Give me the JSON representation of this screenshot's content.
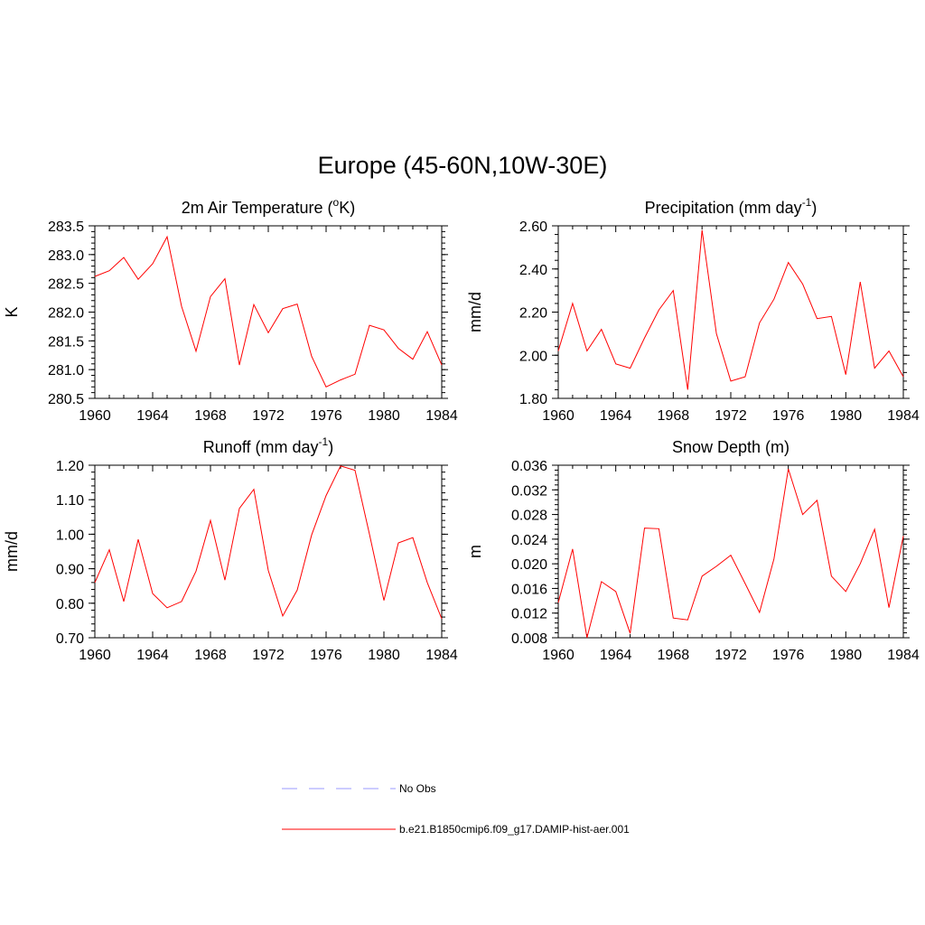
{
  "title": "Europe (45-60N,10W-30E)",
  "chart_data": [
    {
      "type": "line",
      "title": "2m Air Temperature (",
      "title_sup": "o",
      "title_after": "K)",
      "ylabel": "K",
      "xlim": [
        1960,
        1984
      ],
      "ylim": [
        280.5,
        283.5
      ],
      "x_ticks": [
        1960,
        1964,
        1968,
        1972,
        1976,
        1980,
        1984
      ],
      "y_ticks": [
        "280.5",
        "281.0",
        "281.5",
        "282.0",
        "282.5",
        "283.0",
        "283.5"
      ],
      "y_tick_values": [
        280.5,
        281.0,
        281.5,
        282.0,
        282.5,
        283.0,
        283.5
      ],
      "y_minor": 0.1,
      "series": [
        {
          "color": "#ff0000",
          "x": [
            1960,
            1961,
            1962,
            1963,
            1964,
            1965,
            1966,
            1967,
            1968,
            1969,
            1970,
            1971,
            1972,
            1973,
            1974,
            1975,
            1976,
            1977,
            1978,
            1979,
            1980,
            1981,
            1982,
            1983,
            1984
          ],
          "values": [
            282.62,
            282.72,
            282.95,
            282.57,
            282.84,
            283.31,
            282.1,
            281.32,
            282.27,
            282.58,
            281.08,
            282.13,
            281.64,
            282.06,
            282.14,
            281.23,
            280.7,
            280.82,
            280.92,
            281.77,
            281.69,
            281.37,
            281.18,
            281.66,
            281.08
          ]
        }
      ]
    },
    {
      "type": "line",
      "title": "Precipitation (mm day",
      "title_sup": "-1",
      "title_after": ")",
      "ylabel": "mm/d",
      "xlim": [
        1960,
        1984
      ],
      "ylim": [
        1.8,
        2.6
      ],
      "x_ticks": [
        1960,
        1964,
        1968,
        1972,
        1976,
        1980,
        1984
      ],
      "y_ticks": [
        "1.80",
        "2.00",
        "2.20",
        "2.40",
        "2.60"
      ],
      "y_tick_values": [
        1.8,
        2.0,
        2.2,
        2.4,
        2.6
      ],
      "y_minor": 0.04,
      "series": [
        {
          "color": "#ff0000",
          "x": [
            1960,
            1961,
            1962,
            1963,
            1964,
            1965,
            1966,
            1967,
            1968,
            1969,
            1970,
            1971,
            1972,
            1973,
            1974,
            1975,
            1976,
            1977,
            1978,
            1979,
            1980,
            1981,
            1982,
            1983,
            1984
          ],
          "values": [
            2.02,
            2.24,
            2.02,
            2.12,
            1.96,
            1.94,
            2.08,
            2.21,
            2.3,
            1.84,
            2.58,
            2.1,
            1.88,
            1.9,
            2.15,
            2.26,
            2.43,
            2.33,
            2.17,
            2.18,
            1.91,
            2.34,
            1.94,
            2.02,
            1.9
          ]
        }
      ]
    },
    {
      "type": "line",
      "title": "Runoff (mm day",
      "title_sup": "-1",
      "title_after": ")",
      "ylabel": "mm/d",
      "xlim": [
        1960,
        1984
      ],
      "ylim": [
        0.7,
        1.2
      ],
      "x_ticks": [
        1960,
        1964,
        1968,
        1972,
        1976,
        1980,
        1984
      ],
      "y_ticks": [
        "0.70",
        "0.80",
        "0.90",
        "1.00",
        "1.10",
        "1.20"
      ],
      "y_tick_values": [
        0.7,
        0.8,
        0.9,
        1.0,
        1.1,
        1.2
      ],
      "y_minor": 0.02,
      "series": [
        {
          "color": "#ff0000",
          "x": [
            1960,
            1961,
            1962,
            1963,
            1964,
            1965,
            1966,
            1967,
            1968,
            1969,
            1970,
            1971,
            1972,
            1973,
            1974,
            1975,
            1976,
            1977,
            1978,
            1979,
            1980,
            1981,
            1982,
            1983,
            1984
          ],
          "values": [
            0.86,
            0.955,
            0.805,
            0.985,
            0.828,
            0.787,
            0.805,
            0.893,
            1.04,
            0.867,
            1.075,
            1.13,
            0.895,
            0.763,
            0.838,
            0.998,
            1.112,
            1.198,
            1.185,
            1.0,
            0.808,
            0.975,
            0.99,
            0.86,
            0.755
          ]
        }
      ]
    },
    {
      "type": "line",
      "title": "Snow Depth (m)",
      "title_sup": "",
      "title_after": "",
      "ylabel": "m",
      "xlim": [
        1960,
        1984
      ],
      "ylim": [
        0.008,
        0.036
      ],
      "x_ticks": [
        1960,
        1964,
        1968,
        1972,
        1976,
        1980,
        1984
      ],
      "y_ticks": [
        "0.008",
        "0.012",
        "0.016",
        "0.020",
        "0.024",
        "0.028",
        "0.032",
        "0.036"
      ],
      "y_tick_values": [
        0.008,
        0.012,
        0.016,
        0.02,
        0.024,
        0.028,
        0.032,
        0.036
      ],
      "y_minor": 0.0008,
      "series": [
        {
          "color": "#ff0000",
          "x": [
            1960,
            1961,
            1962,
            1963,
            1964,
            1965,
            1966,
            1967,
            1968,
            1969,
            1970,
            1971,
            1972,
            1973,
            1974,
            1975,
            1976,
            1977,
            1978,
            1979,
            1980,
            1981,
            1982,
            1983,
            1984
          ],
          "values": [
            0.0137,
            0.0224,
            0.008,
            0.0171,
            0.0155,
            0.0087,
            0.0258,
            0.0257,
            0.0112,
            0.0109,
            0.018,
            0.0196,
            0.0214,
            0.0168,
            0.0121,
            0.0208,
            0.0354,
            0.028,
            0.0303,
            0.018,
            0.0155,
            0.02,
            0.0256,
            0.0129,
            0.0245
          ]
        }
      ]
    }
  ],
  "legend": [
    {
      "label": "No Obs",
      "color": "#9999ff",
      "style": "dashed"
    },
    {
      "label": "b.e21.B1850cmip6.f09_g17.DAMIP-hist-aer.001",
      "color": "#ff0000",
      "style": "solid"
    }
  ]
}
